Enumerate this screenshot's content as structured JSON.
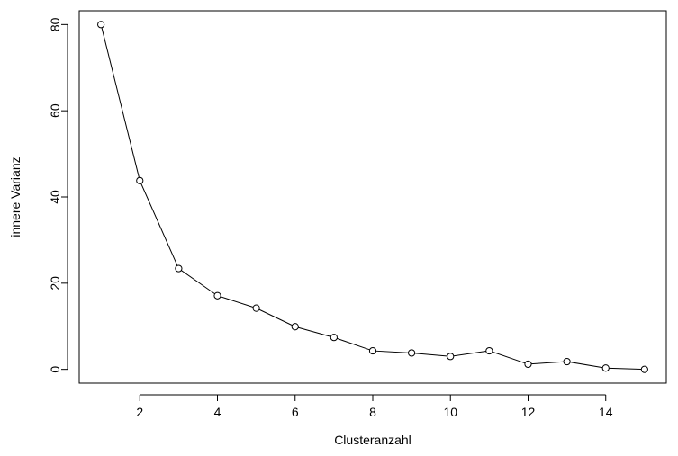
{
  "chart_data": {
    "type": "line",
    "title": "",
    "xlabel": "Clusteranzahl",
    "ylabel": "innere Varianz",
    "x": [
      1,
      2,
      3,
      4,
      5,
      6,
      7,
      8,
      9,
      10,
      11,
      12,
      13,
      14,
      15
    ],
    "series": [
      {
        "values": [
          80.0,
          43.8,
          23.4,
          17.1,
          14.2,
          9.9,
          7.4,
          4.3,
          3.8,
          3.0,
          4.3,
          1.2,
          1.8,
          0.3,
          0.0
        ]
      }
    ],
    "xlim": [
      0.44,
      15.56
    ],
    "ylim": [
      -3.2,
      83.2
    ],
    "xticks": [
      2,
      4,
      6,
      8,
      10,
      12,
      14
    ],
    "yticks": [
      0,
      20,
      40,
      60,
      80
    ],
    "grid": false,
    "marker": "open-circle",
    "line_color": "#000000"
  }
}
